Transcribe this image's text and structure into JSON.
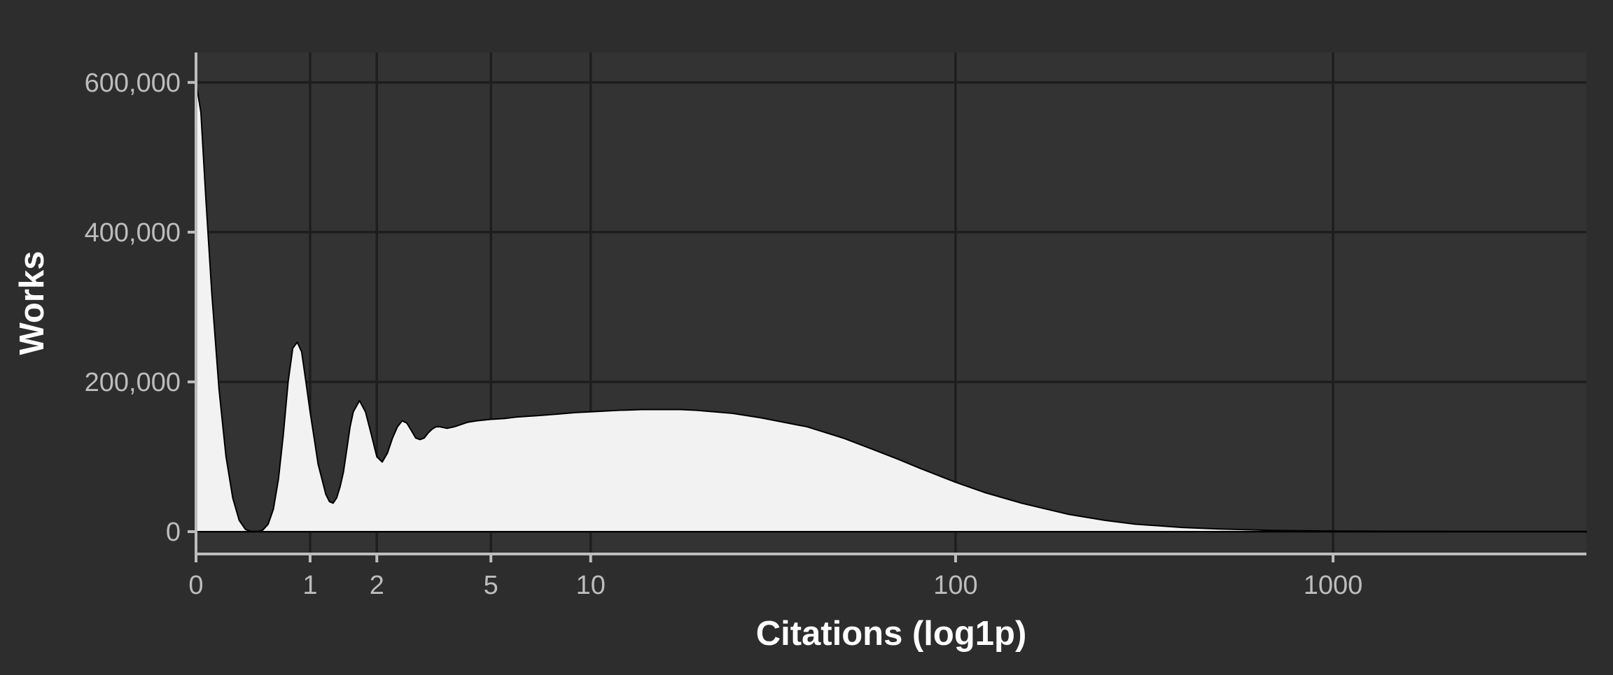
{
  "chart_data": {
    "type": "area",
    "title": "",
    "xlabel": "Citations (log1p)",
    "ylabel": "Works",
    "x_scale": "log1p",
    "xlim": [
      0,
      4665
    ],
    "ylim": [
      -28000,
      640000
    ],
    "grid": true,
    "legend": "none",
    "x_ticks": [
      0,
      1,
      2,
      5,
      10,
      100,
      1000
    ],
    "x_tick_labels": [
      "0",
      "1",
      "2",
      "5",
      "10",
      "100",
      "1000"
    ],
    "y_ticks": [
      0,
      200000,
      400000,
      600000
    ],
    "y_tick_labels": [
      "0",
      "200,000",
      "400,000",
      "600,000"
    ],
    "series": [
      {
        "x": [
          0,
          0.03,
          0.06,
          0.1,
          0.15,
          0.2,
          0.25,
          0.3,
          0.35,
          0.4,
          0.45,
          0.5,
          0.55,
          0.6,
          0.65,
          0.7,
          0.75,
          0.8,
          0.85,
          0.9,
          0.95,
          1.0,
          1.05,
          1.1,
          1.15,
          1.2,
          1.25,
          1.3,
          1.35,
          1.4,
          1.45,
          1.5,
          1.55,
          1.6,
          1.7,
          1.8,
          1.9,
          2.0,
          2.1,
          2.2,
          2.3,
          2.4,
          2.5,
          2.6,
          2.7,
          2.8,
          2.9,
          3.0,
          3.1,
          3.2,
          3.3,
          3.4,
          3.5,
          3.6,
          3.8,
          4.0,
          4.2,
          4.5,
          5,
          5.5,
          6,
          7,
          8,
          9,
          10,
          12,
          14,
          16,
          18,
          20,
          25,
          30,
          40,
          50,
          60,
          70,
          80,
          100,
          120,
          150,
          200,
          250,
          300,
          400,
          500,
          700,
          1000,
          1500,
          2000,
          3000,
          4665
        ],
        "values": [
          600000,
          560000,
          450000,
          320000,
          190000,
          100000,
          45000,
          15000,
          3000,
          0,
          0,
          2000,
          10000,
          30000,
          70000,
          130000,
          200000,
          245000,
          253000,
          240000,
          200000,
          160000,
          125000,
          90000,
          70000,
          50000,
          40000,
          38000,
          45000,
          60000,
          80000,
          110000,
          140000,
          160000,
          175000,
          160000,
          130000,
          100000,
          93000,
          105000,
          125000,
          140000,
          148000,
          145000,
          135000,
          125000,
          123000,
          125000,
          132000,
          137000,
          140000,
          140000,
          139000,
          138000,
          140000,
          143000,
          146000,
          148000,
          150000,
          151000,
          153000,
          155000,
          157000,
          159000,
          160000,
          162000,
          163000,
          163000,
          163000,
          162000,
          158000,
          152000,
          140000,
          125000,
          110000,
          97000,
          85000,
          66000,
          52000,
          38000,
          23000,
          15000,
          10000,
          5500,
          3500,
          1500,
          700,
          300,
          150,
          60,
          0
        ]
      }
    ],
    "colors": {
      "background": "#2d2d2d",
      "panel": "#333333",
      "grid": "#1e1e1e",
      "fill": "#f2f2f2",
      "outline": "#000000",
      "axis_line": "#bdbdbd",
      "tick_label": "#bdbdbd",
      "axis_title": "#ffffff"
    }
  }
}
